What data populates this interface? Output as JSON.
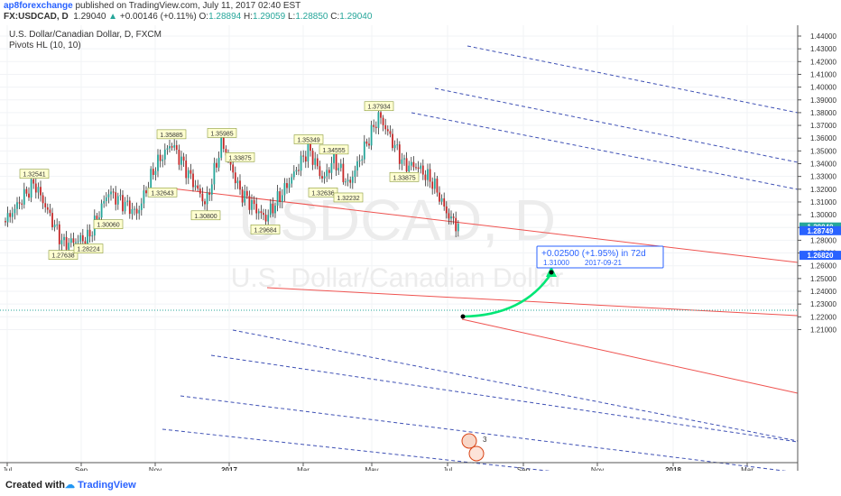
{
  "header": {
    "publisher": "ap8forexchange",
    "published_text": " published on TradingView.com, July 11, 2017 02:40 EST",
    "symbol": "FX:USDCAD, D",
    "last": "1.29040",
    "change": "+0.00146 (+0.11%)",
    "open_label": "O:",
    "open": "1.28894",
    "high_label": "H:",
    "high": "1.29059",
    "low_label": "L:",
    "low": "1.28850",
    "close_label": "C:",
    "close": "1.29040"
  },
  "legend": {
    "title": "U.S. Dollar/Canadian Dollar, D, FXCM",
    "indicator": "Pivots HL (10, 10)"
  },
  "watermark": {
    "big": "USDCAD, D",
    "small": "U.S. Dollar/Canadian Dollar"
  },
  "price_scale": [
    "1.44000",
    "1.43000",
    "1.42000",
    "1.41000",
    "1.40000",
    "1.39000",
    "1.38000",
    "1.37000",
    "1.36000",
    "1.35000",
    "1.34000",
    "1.33000",
    "1.32000",
    "1.31000",
    "1.30000",
    "1.29000",
    "1.28000",
    "1.27000",
    "1.26000",
    "1.25000",
    "1.24000",
    "1.23000",
    "1.22000",
    "1.21000"
  ],
  "price_badges": [
    {
      "value": "1.29040",
      "color": "#26a69a"
    },
    {
      "value": "1.28749",
      "color": "#2962ff"
    },
    {
      "value": "1.26820",
      "color": "#2962ff"
    }
  ],
  "time_axis": [
    "Jul",
    "Sep",
    "Nov",
    "2017",
    "Mar",
    "May",
    "Jul",
    "Sep",
    "Nov",
    "2018",
    "Mar"
  ],
  "pivots": [
    "1.32541",
    "1.27638",
    "1.28224",
    "1.30060",
    "1.32643",
    "1.35885",
    "1.30800",
    "1.35985",
    "1.33875",
    "1.29684",
    "1.35349",
    "1.32636",
    "1.34555",
    "1.32232",
    "1.37934",
    "1.33875"
  ],
  "projection": {
    "line1": "+0.02500 (+1.95%) in 72d",
    "price": "1.31000",
    "date": "2017-09-21"
  },
  "footer": {
    "created_with": "Created with",
    "brand": "TradingView"
  },
  "colors": {
    "up": "#26a69a",
    "down": "#c62828",
    "channel": "#ef5350",
    "dashed": "#3f51b5",
    "arrow": "#00e676"
  }
}
